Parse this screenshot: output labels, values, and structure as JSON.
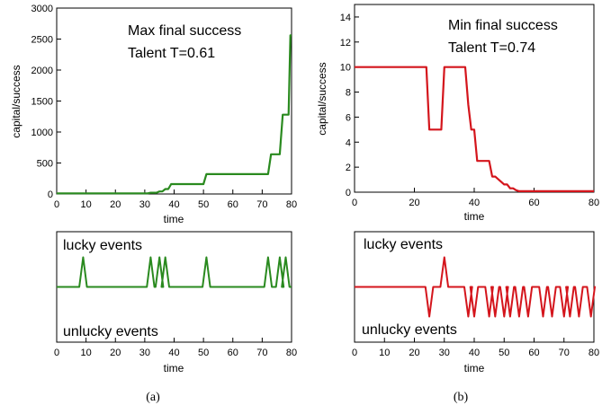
{
  "chart_data": [
    {
      "id": "a_top",
      "type": "line",
      "xlabel": "time",
      "ylabel": "capital/success",
      "xlim": [
        0,
        80
      ],
      "ylim": [
        0,
        3000
      ],
      "xticks": [
        0,
        10,
        20,
        30,
        40,
        50,
        60,
        70,
        80
      ],
      "yticks": [
        0,
        500,
        1000,
        1500,
        2000,
        2500,
        3000
      ],
      "annotations": [
        "Max final success",
        "Talent T=0.61"
      ],
      "color": "#2a8a1f",
      "series": [
        {
          "name": "capital",
          "x": [
            0,
            31,
            32,
            34,
            35,
            36,
            37,
            38,
            39,
            40,
            50,
            51,
            52,
            72,
            73,
            74,
            76,
            77,
            78,
            79,
            79.6,
            80
          ],
          "y": [
            10,
            10,
            20,
            20,
            40,
            40,
            80,
            80,
            160,
            160,
            160,
            320,
            320,
            320,
            640,
            640,
            640,
            1280,
            1280,
            1280,
            2560,
            2560
          ]
        }
      ]
    },
    {
      "id": "a_bottom",
      "type": "line",
      "xlabel": "time",
      "xlim": [
        0,
        80
      ],
      "xticks": [
        0,
        10,
        20,
        30,
        40,
        50,
        60,
        70,
        80
      ],
      "annotations": [
        "lucky events",
        "unlucky events"
      ],
      "color": "#2a8a1f",
      "lucky_times": [
        9,
        32,
        35,
        37,
        51,
        72,
        76,
        78
      ],
      "unlucky_times": []
    },
    {
      "id": "b_top",
      "type": "line",
      "xlabel": "time",
      "ylabel": "capital/success",
      "xlim": [
        0,
        80
      ],
      "ylim": [
        0,
        15
      ],
      "xticks": [
        0,
        20,
        40,
        60,
        80
      ],
      "yticks": [
        0,
        2,
        4,
        6,
        8,
        10,
        12,
        14
      ],
      "annotations": [
        "Min final success",
        "Talent T=0.74"
      ],
      "color": "#d4151c",
      "series": [
        {
          "name": "capital",
          "x": [
            0,
            24,
            25,
            29,
            30,
            37,
            38,
            39,
            40,
            41,
            42,
            45,
            46,
            47,
            50,
            51,
            52,
            53,
            54,
            55,
            80
          ],
          "y": [
            10,
            10,
            5,
            5,
            10,
            10,
            7,
            5,
            5,
            2.5,
            2.5,
            2.5,
            1.25,
            1.25,
            0.62,
            0.62,
            0.31,
            0.31,
            0.16,
            0.08,
            0.08
          ]
        }
      ]
    },
    {
      "id": "b_bottom",
      "type": "line",
      "xlabel": "time",
      "xlim": [
        0,
        80
      ],
      "xticks": [
        0,
        10,
        20,
        30,
        40,
        50,
        60,
        70,
        80
      ],
      "annotations": [
        "lucky events",
        "unlucky events"
      ],
      "color": "#d4151c",
      "lucky_times": [
        30
      ],
      "unlucky_times": [
        25,
        38,
        40,
        45,
        47,
        50,
        52,
        55,
        58,
        63,
        66,
        70,
        72,
        75,
        79
      ]
    }
  ],
  "captions": {
    "a": "(a)",
    "b": "(b)"
  }
}
